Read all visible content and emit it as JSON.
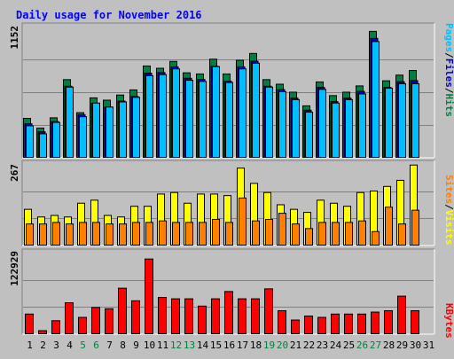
{
  "chart_data": {
    "type": "bar",
    "title": "Daily usage for November 2016",
    "days": [
      "1",
      "2",
      "3",
      "4",
      "5",
      "6",
      "7",
      "8",
      "9",
      "10",
      "11",
      "12",
      "13",
      "14",
      "15",
      "16",
      "17",
      "18",
      "19",
      "20",
      "21",
      "22",
      "23",
      "24",
      "25",
      "26",
      "27",
      "28",
      "29",
      "30",
      "31"
    ],
    "weekend_days": [
      "5",
      "6",
      "12",
      "13",
      "19",
      "20",
      "26",
      "27"
    ],
    "panels": [
      {
        "id": "top",
        "max_label": "1152",
        "ymax": 1152,
        "ylabel_parts": [
          "Pages",
          "Files",
          "Hits"
        ],
        "series": [
          {
            "name": "Hits",
            "color": "#008040",
            "values": [
              350,
              265,
              355,
              690,
              400,
              530,
              510,
              555,
              600,
              810,
              790,
              850,
              750,
              740,
              870,
              740,
              860,
              920,
              690,
              650,
              580,
              460,
              670,
              550,
              580,
              635,
              1114,
              680,
              730,
              770,
              0
            ]
          },
          {
            "name": "Files",
            "color": "#0000c0",
            "values": [
              310,
              240,
              330,
              640,
              390,
              490,
              455,
              510,
              550,
              755,
              760,
              810,
              710,
              700,
              815,
              685,
              810,
              860,
              640,
              610,
              535,
              430,
              630,
              505,
              535,
              595,
              1060,
              630,
              680,
              690,
              0
            ]
          },
          {
            "name": "Pages",
            "color": "#00bfff",
            "values": [
              300,
              230,
              330,
              640,
              380,
              500,
              465,
              510,
              550,
              740,
              750,
              800,
              700,
              690,
              820,
              680,
              800,
              850,
              640,
              600,
              530,
              420,
              620,
              500,
              530,
              580,
              1040,
              630,
              670,
              670,
              0
            ]
          }
        ]
      },
      {
        "id": "mid",
        "max_label": "267",
        "ymax": 267,
        "ylabel_parts": [
          "Sites",
          "Visits"
        ],
        "series": [
          {
            "name": "Visits",
            "color": "#ffff00",
            "values": [
              120,
              95,
              100,
              95,
              140,
              150,
              100,
              95,
              130,
              130,
              170,
              175,
              140,
              170,
              170,
              165,
              255,
              205,
              175,
              135,
              120,
              110,
              150,
              140,
              130,
              175,
              180,
              195,
              215,
              265,
              0
            ]
          },
          {
            "name": "Sites",
            "color": "#ff8000",
            "values": [
              75,
              75,
              80,
              75,
              80,
              80,
              75,
              75,
              80,
              80,
              85,
              80,
              80,
              80,
              90,
              80,
              160,
              85,
              90,
              110,
              75,
              60,
              80,
              80,
              80,
              85,
              50,
              130,
              75,
              120,
              0
            ]
          }
        ]
      },
      {
        "id": "bot",
        "max_label": "122929",
        "ymax": 122929,
        "ylabel_parts": [
          "KBytes"
        ],
        "series": [
          {
            "name": "KBytes",
            "color": "#ff0000",
            "values": [
              31000,
              6000,
              21000,
              48000,
              26000,
              41000,
              39000,
              70000,
              51000,
              114000,
              56000,
              54000,
              54000,
              43000,
              54000,
              65000,
              54000,
              54000,
              69000,
              36000,
              22000,
              28000,
              26000,
              31000,
              31000,
              31000,
              34000,
              36000,
              58000,
              36000,
              0
            ]
          }
        ]
      }
    ],
    "colors": {
      "title": "#0000ff",
      "axis_text": "#000000",
      "weekend_text": "#008040",
      "panel_bg": "#c0c0c0",
      "gridline": "#808080",
      "outline": "#000000",
      "frame_dark": "#808080",
      "frame_light": "#ffffff",
      "separator": "#000000"
    },
    "grid": true,
    "legend": "right"
  }
}
